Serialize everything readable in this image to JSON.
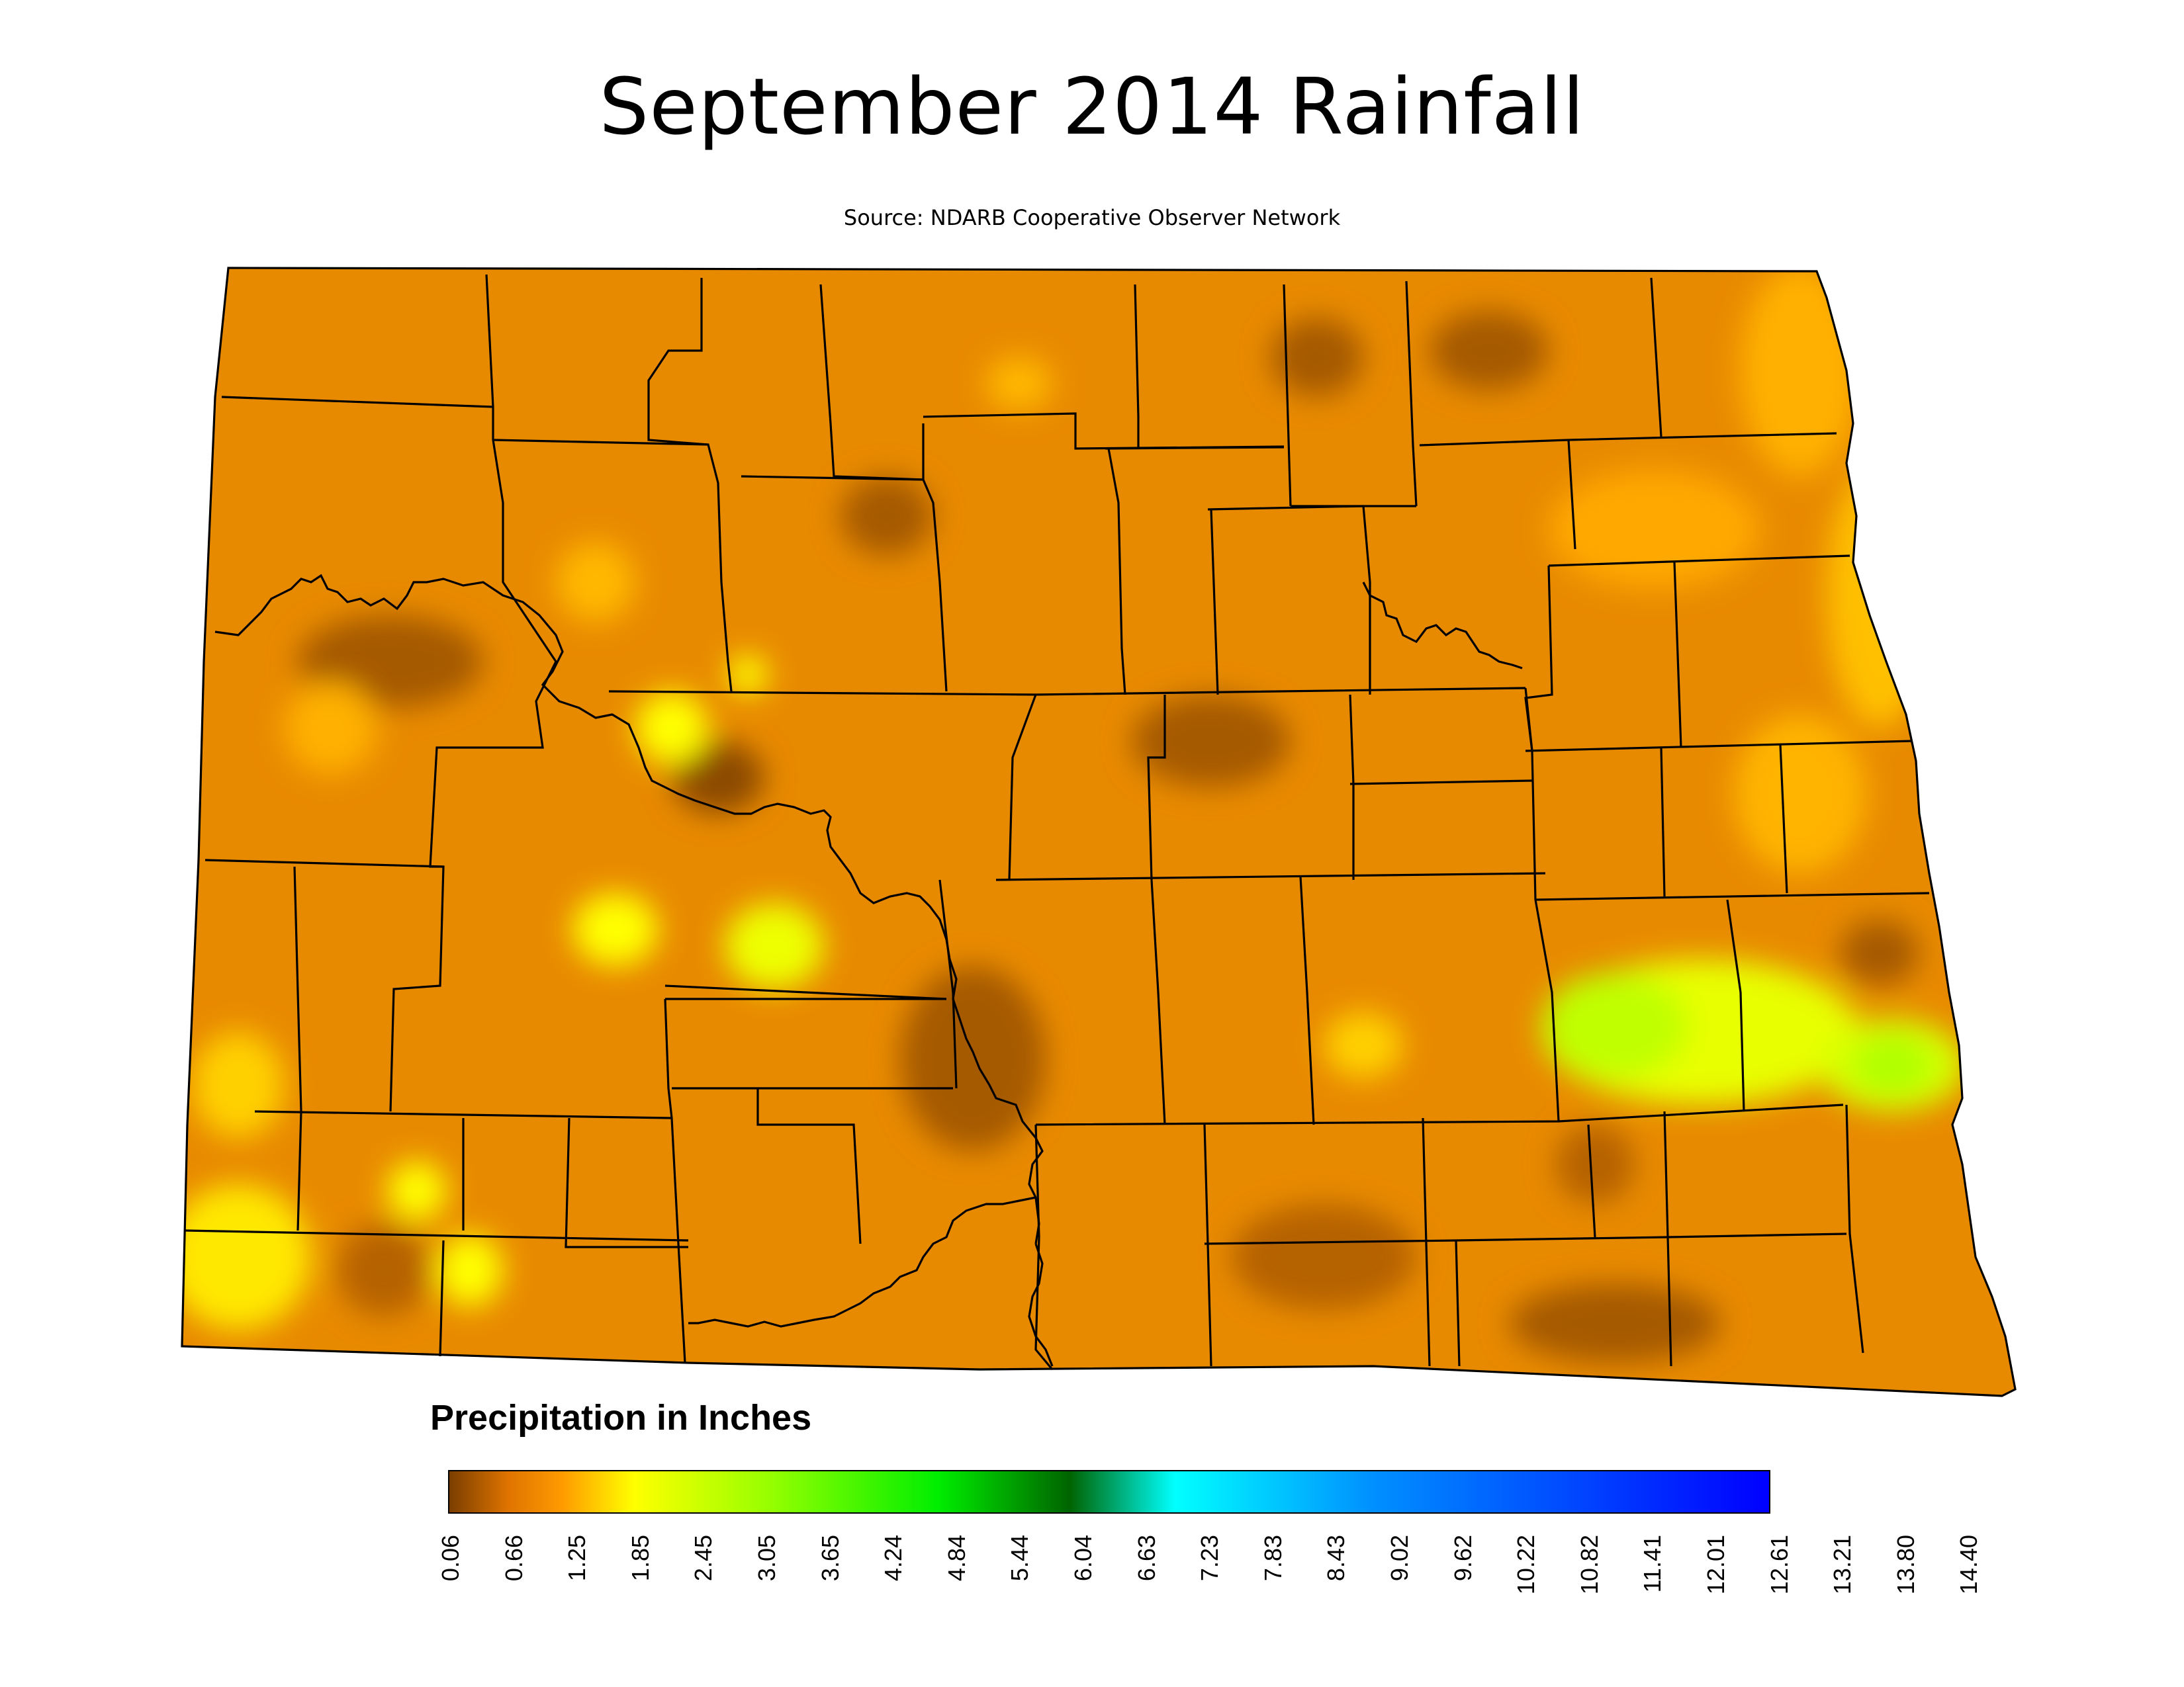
{
  "map": {
    "title": "September 2014 Rainfall",
    "source": "Source: NDARB Cooperative Observer Network",
    "region": "North Dakota",
    "fill_color_base": "#E88A00",
    "boundary_color": "#000000",
    "hotspots": [
      {
        "color": "#FFFF00",
        "level": "2.45"
      },
      {
        "color": "#B5FF00",
        "level": "3.65"
      },
      {
        "color": "#8B4A00",
        "level": "0.06"
      }
    ]
  },
  "legend": {
    "title": "Precipitation in Inches",
    "ticks": [
      "0.06",
      "0.66",
      "1.25",
      "1.85",
      "2.45",
      "3.05",
      "3.65",
      "4.24",
      "4.84",
      "5.44",
      "6.04",
      "6.63",
      "7.23",
      "7.83",
      "8.43",
      "9.02",
      "9.62",
      "10.22",
      "10.82",
      "11.41",
      "12.01",
      "12.61",
      "13.21",
      "13.80",
      "14.40"
    ],
    "colors": [
      {
        "stop": 0.0,
        "color": "#7A3E00"
      },
      {
        "stop": 0.045,
        "color": "#E07400"
      },
      {
        "stop": 0.085,
        "color": "#FF9A00"
      },
      {
        "stop": 0.14,
        "color": "#FFFF00"
      },
      {
        "stop": 0.24,
        "color": "#99FF00"
      },
      {
        "stop": 0.37,
        "color": "#00EE00"
      },
      {
        "stop": 0.47,
        "color": "#006400"
      },
      {
        "stop": 0.55,
        "color": "#00FFFF"
      },
      {
        "stop": 0.7,
        "color": "#0090FF"
      },
      {
        "stop": 1.0,
        "color": "#0000FF"
      }
    ]
  }
}
